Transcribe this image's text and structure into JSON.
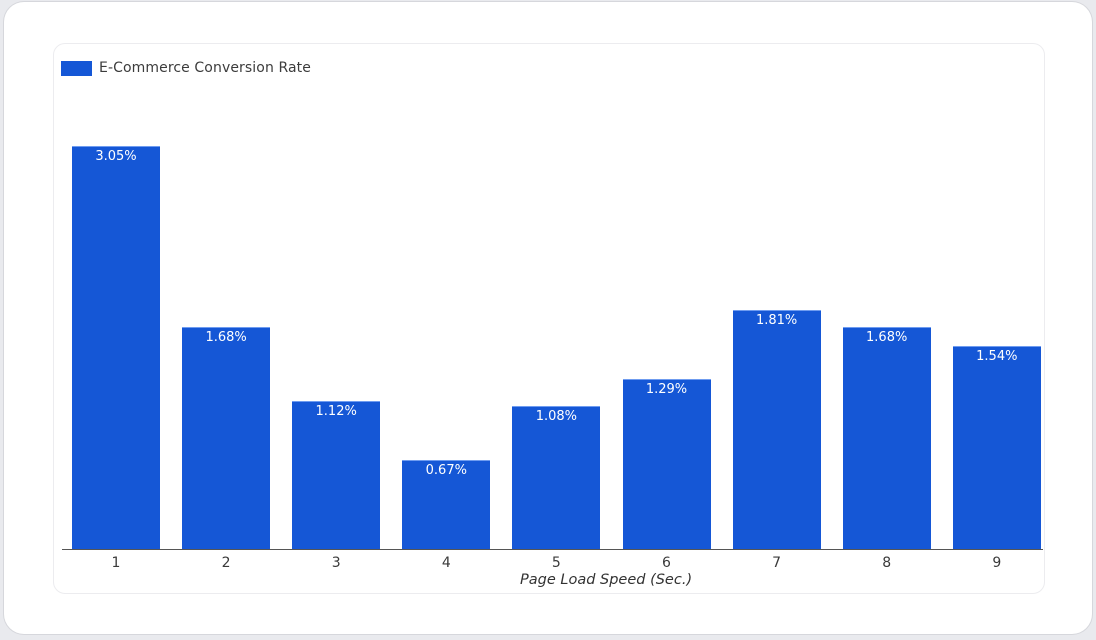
{
  "chart_data": {
    "type": "bar",
    "title": "",
    "legend": [
      {
        "label": "E-Commerce Conversion Rate",
        "color": "#1557d6"
      }
    ],
    "legend_position": "top-left",
    "categories": [
      "1",
      "2",
      "3",
      "4",
      "5",
      "6",
      "7",
      "8",
      "9"
    ],
    "values": [
      3.05,
      1.68,
      1.12,
      0.67,
      1.08,
      1.29,
      1.81,
      1.68,
      1.54
    ],
    "value_labels": [
      "3.05%",
      "1.68%",
      "1.12%",
      "0.67%",
      "1.08%",
      "1.29%",
      "1.81%",
      "1.68%",
      "1.54%"
    ],
    "xlabel": "Page Load Speed (Sec.)",
    "ylabel": "",
    "ylim": [
      0,
      3.05
    ],
    "grid": false,
    "series": [
      {
        "name": "E-Commerce Conversion Rate",
        "color": "#1557d6",
        "values": [
          3.05,
          1.68,
          1.12,
          0.67,
          1.08,
          1.29,
          1.81,
          1.68,
          1.54
        ]
      }
    ]
  }
}
